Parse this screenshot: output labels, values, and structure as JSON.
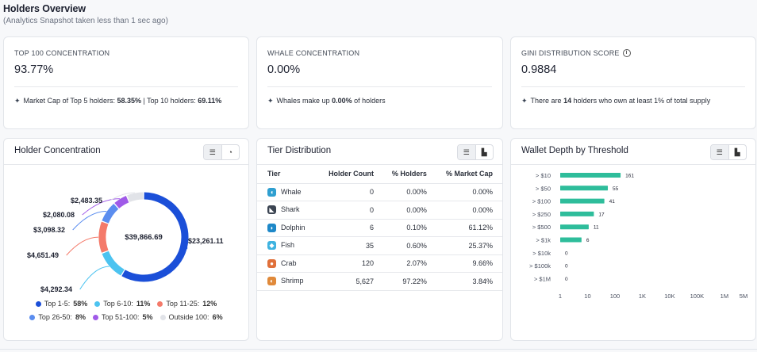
{
  "header": {
    "title": "Holders Overview",
    "subtitle": "(Analytics Snapshot taken less than 1 sec ago)"
  },
  "stats": {
    "top100": {
      "label": "TOP 100 CONCENTRATION",
      "value": "93.77%",
      "note_pre": "Market Cap of Top 5 holders: ",
      "note_b1": "58.35%",
      "note_mid": " | Top 10 holders: ",
      "note_b2": "69.11%"
    },
    "whale": {
      "label": "WHALE CONCENTRATION",
      "value": "0.00%",
      "note_pre": "Whales make up ",
      "note_b1": "0.00%",
      "note_post": " of holders"
    },
    "gini": {
      "label": "GINI DISTRIBUTION SCORE",
      "value": "0.9884",
      "note_pre": "There are ",
      "note_b1": "14",
      "note_post": " holders who own at least 1% of total supply"
    }
  },
  "holder_concentration": {
    "title": "Holder Concentration",
    "center_label": "$39,866.69",
    "slice_labels": [
      "$23,261.11",
      "$4,292.34",
      "$4,651.49",
      "$3,098.32",
      "$2,080.08",
      "$2,483.35"
    ],
    "legend": [
      {
        "name": "Top 1-5:",
        "pct": "58%",
        "color": "#1b4fd8"
      },
      {
        "name": "Top 6-10:",
        "pct": "11%",
        "color": "#4cc3f0"
      },
      {
        "name": "Top 11-25:",
        "pct": "12%",
        "color": "#f47a6a"
      },
      {
        "name": "Top 26-50:",
        "pct": "8%",
        "color": "#5b8def"
      },
      {
        "name": "Top 51-100:",
        "pct": "5%",
        "color": "#a05ae8"
      },
      {
        "name": "Outside 100:",
        "pct": "6%",
        "color": "#e1e3e8"
      }
    ],
    "chart_data": {
      "type": "pie",
      "categories": [
        "Top 1-5",
        "Top 6-10",
        "Top 11-25",
        "Top 26-50",
        "Top 51-100",
        "Outside 100"
      ],
      "values": [
        23261.11,
        4292.34,
        4651.49,
        3098.32,
        2080.08,
        2483.35
      ],
      "total": 39866.69,
      "legend": "bottom"
    }
  },
  "tier_distribution": {
    "title": "Tier Distribution",
    "columns": [
      "Tier",
      "Holder Count",
      "% Holders",
      "% Market Cap"
    ],
    "rows": [
      {
        "tier": "Whale",
        "count": "0",
        "holders": "0.00%",
        "mcap": "0.00%",
        "icon": "whale-icon",
        "color": "#2f9fd0",
        "glyph": "◖"
      },
      {
        "tier": "Shark",
        "count": "0",
        "holders": "0.00%",
        "mcap": "0.00%",
        "icon": "shark-icon",
        "color": "#3b4452",
        "glyph": "◣"
      },
      {
        "tier": "Dolphin",
        "count": "6",
        "holders": "0.10%",
        "mcap": "61.12%",
        "icon": "dolphin-icon",
        "color": "#1e88c8",
        "glyph": "◗"
      },
      {
        "tier": "Fish",
        "count": "35",
        "holders": "0.60%",
        "mcap": "25.37%",
        "icon": "fish-icon",
        "color": "#3fb3e0",
        "glyph": "◆"
      },
      {
        "tier": "Crab",
        "count": "120",
        "holders": "2.07%",
        "mcap": "9.66%",
        "icon": "crab-icon",
        "color": "#e0703a",
        "glyph": "●"
      },
      {
        "tier": "Shrimp",
        "count": "5,627",
        "holders": "97.22%",
        "mcap": "3.84%",
        "icon": "shrimp-icon",
        "color": "#e0893a",
        "glyph": "◐"
      }
    ]
  },
  "wallet_depth": {
    "title": "Wallet Depth by Threshold",
    "chart_data": {
      "type": "bar",
      "orientation": "horizontal",
      "categories": [
        "> $10",
        "> $50",
        "> $100",
        "> $250",
        "> $500",
        "> $1k",
        "> $10k",
        "> $100k",
        "> $1M"
      ],
      "values": [
        161,
        55,
        41,
        17,
        11,
        6,
        0,
        0,
        0
      ],
      "xscale": "log",
      "xticks": [
        "1",
        "10",
        "100",
        "1K",
        "10K",
        "100K",
        "1M",
        "5M"
      ],
      "xtick_values": [
        1,
        10,
        100,
        1000,
        10000,
        100000,
        1000000,
        5000000
      ],
      "bar_color": "#2ebd9b",
      "grid": false
    }
  }
}
